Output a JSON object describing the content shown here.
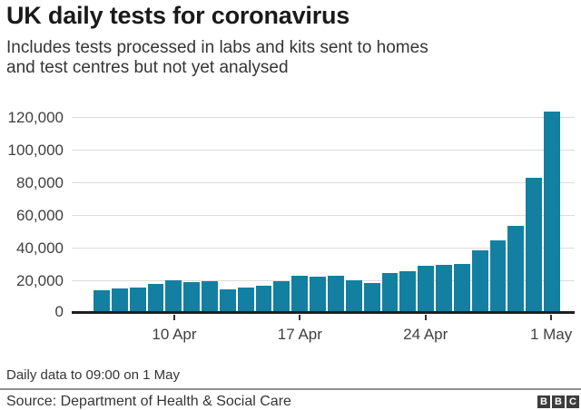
{
  "title": "UK daily tests for coronavirus",
  "subtitle": {
    "line1": "Includes tests processed in labs and kits sent to homes",
    "line2": "and test centres but not yet analysed"
  },
  "footer": {
    "note": "Daily data to 09:00 on 1 May",
    "source": "Source: Department of Health & Social Care"
  },
  "logo": {
    "letters": [
      "B",
      "B",
      "C"
    ]
  },
  "colors": {
    "bar": "#1380a1",
    "title_text": "#1a1a1a",
    "body_text": "#353535",
    "axis_text": "#404040",
    "gridline": "#dcdcdc",
    "baseline": "#1f1f1f",
    "logo_bg": "#3d3d3d"
  },
  "chart_data": {
    "type": "bar",
    "title": "UK daily tests for coronavirus",
    "xlabel": "",
    "ylabel": "",
    "categories": [
      "6 Apr",
      "7 Apr",
      "8 Apr",
      "9 Apr",
      "10 Apr",
      "11 Apr",
      "12 Apr",
      "13 Apr",
      "14 Apr",
      "15 Apr",
      "16 Apr",
      "17 Apr",
      "18 Apr",
      "19 Apr",
      "20 Apr",
      "21 Apr",
      "22 Apr",
      "23 Apr",
      "24 Apr",
      "25 Apr",
      "26 Apr",
      "27 Apr",
      "28 Apr",
      "29 Apr",
      "30 Apr",
      "1 May"
    ],
    "values": [
      12800,
      14100,
      14600,
      16500,
      18700,
      17800,
      18300,
      13500,
      14600,
      15700,
      18300,
      21400,
      21100,
      21900,
      18900,
      17200,
      23300,
      24400,
      27800,
      28300,
      28900,
      37200,
      43300,
      52200,
      81600,
      122000
    ],
    "ylim": [
      0,
      120000
    ],
    "y_tick_labels": [
      "0",
      "20,000",
      "40,000",
      "60,000",
      "80,000",
      "100,000",
      "120,000"
    ],
    "y_tick_values": [
      0,
      20000,
      40000,
      60000,
      80000,
      100000,
      120000
    ],
    "x_tick_labels": [
      "10 Apr",
      "17 Apr",
      "24 Apr",
      "1 May"
    ],
    "x_tick_category_indices": [
      4,
      11,
      18,
      25
    ],
    "grid": true,
    "legend": false
  }
}
